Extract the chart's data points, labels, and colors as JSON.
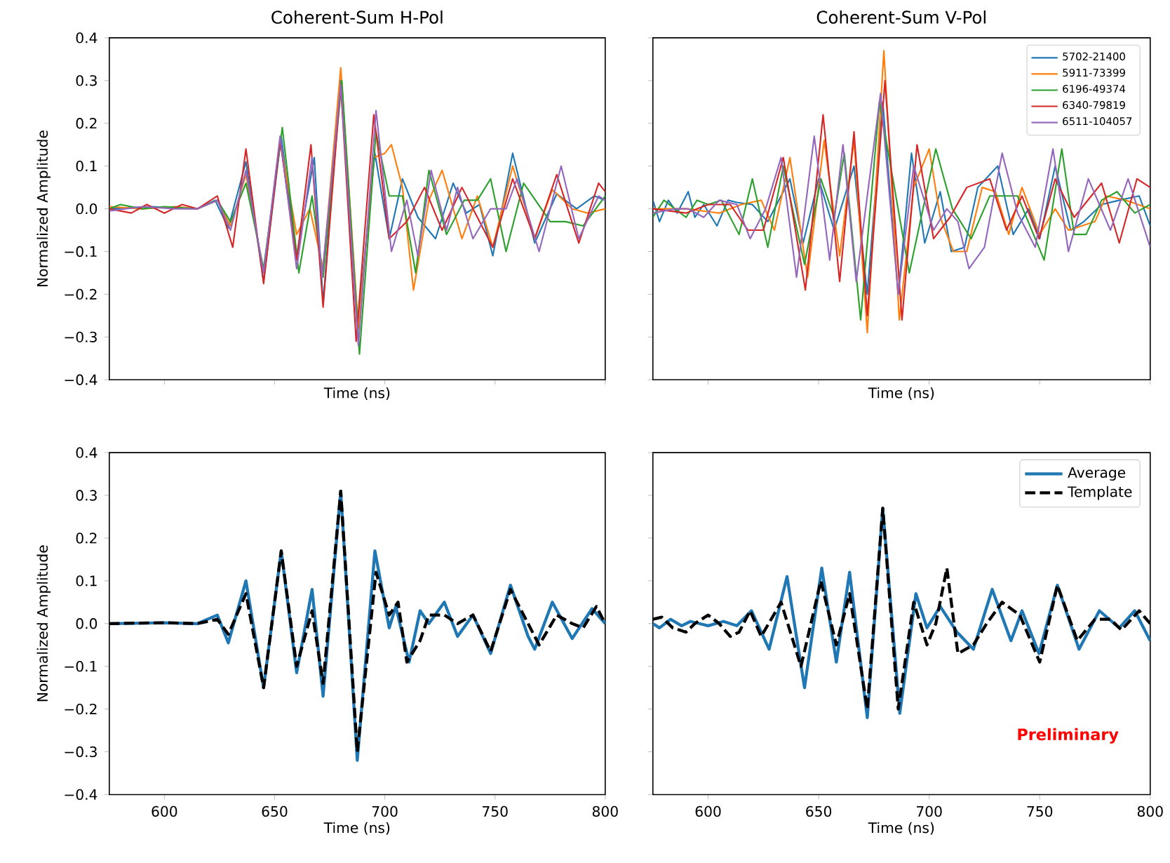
{
  "chart_data": [
    {
      "type": "line",
      "title": "Coherent-Sum H-Pol",
      "xlabel": "Time (ns)",
      "ylabel": "Normalized Amplitude",
      "xlim": [
        575,
        800
      ],
      "ylim": [
        -0.4,
        0.4
      ],
      "xticks": [
        600,
        650,
        700,
        750,
        800
      ],
      "yticks": [
        {
          "value": -0.4,
          "label": "−0.4"
        },
        {
          "value": -0.3,
          "label": "−0.3"
        },
        {
          "value": -0.2,
          "label": "−0.2"
        },
        {
          "value": -0.1,
          "label": "−0.1"
        },
        {
          "value": 0,
          "label": "0.0"
        },
        {
          "value": 0.1,
          "label": "0.1"
        },
        {
          "value": 0.2,
          "label": "0.2"
        },
        {
          "value": 0.3,
          "label": "0.3"
        },
        {
          "value": 0.4,
          "label": "0.4"
        }
      ],
      "tick_labels": "y",
      "grid": false,
      "legend": false,
      "series": [
        {
          "color": "#1f77b4",
          "x": [
            575,
            594,
            615,
            623,
            629,
            637,
            645,
            653,
            660,
            668,
            672,
            680,
            687.5,
            695.5,
            702,
            708,
            715,
            723,
            731,
            737,
            743,
            749,
            758,
            768,
            778,
            787,
            795,
            800
          ],
          "values": [
            0,
            0.005,
            0,
            0.02,
            -0.045,
            0.11,
            -0.17,
            0.17,
            -0.11,
            0.12,
            -0.22,
            0.3,
            -0.28,
            0.13,
            -0.07,
            0.07,
            -0.02,
            -0.07,
            0.06,
            -0.01,
            0.01,
            -0.11,
            0.13,
            -0.08,
            0.035,
            0,
            0.03,
            0.02
          ]
        },
        {
          "color": "#ff7f0e",
          "x": [
            575,
            590,
            605,
            615,
            624,
            630,
            637,
            645,
            652.5,
            660,
            666,
            672,
            680,
            688,
            695,
            700,
            703,
            708,
            713,
            720,
            726,
            735,
            742,
            749,
            758,
            768,
            776,
            785,
            792,
            800
          ],
          "values": [
            0.005,
            0,
            0.005,
            0,
            0.02,
            -0.04,
            0.08,
            -0.15,
            0.16,
            -0.06,
            0,
            -0.14,
            0.33,
            -0.28,
            0.12,
            0.13,
            0.15,
            0.05,
            -0.19,
            0.02,
            0.09,
            -0.07,
            0.03,
            -0.09,
            0.1,
            -0.07,
            0.045,
            0,
            -0.01,
            0
          ]
        },
        {
          "color": "#2ca02c",
          "x": [
            575,
            580,
            590,
            600,
            615,
            624,
            630,
            637,
            645,
            653.5,
            661,
            667,
            672,
            680.5,
            688.5,
            696,
            702,
            708,
            714,
            720,
            728,
            736,
            742,
            748,
            755,
            763,
            775,
            782,
            790,
            800
          ],
          "values": [
            0,
            0.01,
            0,
            0.005,
            0,
            0.02,
            -0.03,
            0.06,
            -0.14,
            0.19,
            -0.15,
            0.03,
            -0.16,
            0.3,
            -0.34,
            0.18,
            0.03,
            0.03,
            -0.15,
            0.09,
            -0.06,
            0.02,
            0.02,
            0.07,
            -0.1,
            0.06,
            -0.03,
            -0.03,
            -0.04,
            0.03
          ]
        },
        {
          "color": "#d62728",
          "x": [
            575,
            585,
            592,
            600,
            608,
            615,
            624,
            631,
            637,
            645,
            652.5,
            660,
            666.5,
            672,
            680,
            687,
            695,
            702,
            710,
            718,
            726,
            735,
            742,
            749,
            758,
            768,
            778,
            788,
            797,
            800
          ],
          "values": [
            0,
            -0.01,
            0.01,
            -0.01,
            0.01,
            0,
            0.03,
            -0.09,
            0.14,
            -0.175,
            0.16,
            -0.12,
            0.15,
            -0.23,
            0.29,
            -0.31,
            0.22,
            -0.07,
            -0.03,
            0.05,
            -0.05,
            0.05,
            -0.02,
            -0.09,
            0.07,
            -0.07,
            0.08,
            -0.08,
            0.06,
            0.04
          ]
        },
        {
          "color": "#9467bd",
          "x": [
            575,
            590,
            605,
            615,
            624,
            630,
            637,
            645,
            652.5,
            660,
            667,
            671.5,
            680,
            688,
            696,
            703,
            710,
            715,
            721,
            728,
            733,
            740,
            748,
            755,
            760,
            770,
            780,
            788,
            797,
            800
          ],
          "values": [
            -0.005,
            0.005,
            0,
            0,
            0.02,
            -0.05,
            0.09,
            -0.15,
            0.17,
            -0.14,
            0.12,
            -0.16,
            0.29,
            -0.32,
            0.23,
            -0.1,
            0.02,
            -0.11,
            0.09,
            -0.05,
            0.05,
            -0.07,
            0,
            0,
            0.07,
            -0.1,
            0.1,
            -0.07,
            0.03,
            0.02
          ]
        }
      ]
    },
    {
      "type": "line",
      "title": "Coherent-Sum V-Pol",
      "xlabel": "Time (ns)",
      "xlim": [
        575,
        800
      ],
      "ylim": [
        -0.4,
        0.4
      ],
      "xticks": [
        600,
        650,
        700,
        750,
        800
      ],
      "yticks": [
        -0.4,
        -0.3,
        -0.2,
        -0.1,
        0,
        0.1,
        0.2,
        0.3,
        0.4
      ],
      "tick_labels": false,
      "grid": false,
      "legend": "top right",
      "series": [
        {
          "name": "5702-21400",
          "color": "#1f77b4",
          "x": [
            575,
            578,
            582,
            586,
            591,
            594,
            598,
            604,
            609,
            613,
            620,
            627,
            637,
            643,
            650,
            657,
            666,
            672,
            679,
            686,
            692,
            698,
            705,
            710,
            716,
            722,
            731,
            738,
            745,
            750,
            757,
            764,
            770,
            778,
            786,
            795,
            800
          ],
          "values": [
            0.02,
            -0.03,
            0.02,
            -0.01,
            0.04,
            -0.02,
            0.01,
            -0.04,
            0.02,
            0.015,
            0.01,
            -0.03,
            0.07,
            -0.08,
            0.07,
            -0.05,
            0.1,
            -0.2,
            0.25,
            -0.2,
            0.13,
            -0.08,
            0.04,
            -0.1,
            -0.09,
            0.05,
            0.1,
            -0.06,
            0,
            -0.07,
            0.1,
            -0.05,
            -0.03,
            0.01,
            0.02,
            0.03,
            -0.04
          ]
        },
        {
          "name": "5911-73399",
          "color": "#ff7f0e",
          "x": [
            575,
            590,
            605,
            615,
            624,
            630,
            637,
            645,
            652.5,
            659.5,
            666,
            672,
            679.5,
            686.5,
            693,
            700,
            705,
            711,
            717,
            724,
            730,
            736,
            742,
            750,
            757,
            763,
            775,
            780,
            789,
            800
          ],
          "values": [
            0,
            0,
            -0.01,
            0.01,
            0.02,
            -0.05,
            0.12,
            -0.16,
            0.16,
            -0.11,
            0.16,
            -0.29,
            0.37,
            -0.26,
            0.05,
            0.14,
            -0.02,
            -0.1,
            -0.1,
            0.05,
            0.04,
            -0.06,
            0.05,
            -0.06,
            0,
            -0.05,
            -0.03,
            0.03,
            0.02,
            0
          ]
        },
        {
          "name": "6196-49374",
          "color": "#2ca02c",
          "x": [
            575,
            580,
            585,
            590,
            595,
            600,
            606,
            614,
            620,
            627,
            634,
            643.6,
            651,
            657,
            661.6,
            669,
            677.5,
            691,
            703,
            710.5,
            719,
            727.4,
            740,
            752,
            760,
            765.6,
            771,
            778,
            785,
            793,
            800
          ],
          "values": [
            -0.02,
            0.02,
            0,
            -0.02,
            0.02,
            0.01,
            0.02,
            -0.06,
            0.07,
            -0.09,
            0.1,
            -0.13,
            0.07,
            -0.02,
            0.13,
            -0.26,
            0.25,
            -0.15,
            0.14,
            0,
            -0.07,
            0.03,
            0.03,
            -0.12,
            0.14,
            -0.06,
            -0.06,
            0.02,
            0.04,
            -0.01,
            0.01
          ]
        },
        {
          "name": "6340-79819",
          "color": "#d62728",
          "x": [
            575,
            590,
            600,
            610,
            618,
            625,
            634,
            644,
            652,
            659.5,
            666,
            672,
            680,
            687.7,
            694.5,
            702,
            709.4,
            717,
            727.4,
            735,
            742,
            749.7,
            757,
            765.6,
            778,
            786,
            794,
            800
          ],
          "values": [
            0,
            -0.01,
            0.01,
            0.01,
            -0.05,
            -0.05,
            0.12,
            -0.19,
            0.22,
            -0.17,
            0.18,
            -0.25,
            0.3,
            -0.26,
            0.15,
            -0.07,
            -0.02,
            0.05,
            0.07,
            -0.05,
            0.03,
            -0.07,
            0.07,
            -0.02,
            0.06,
            -0.08,
            0.07,
            0.05
          ]
        },
        {
          "name": "6511-104057",
          "color": "#9467bd",
          "x": [
            575,
            585,
            591,
            598,
            605,
            613,
            619,
            626,
            633,
            640,
            648,
            655,
            661,
            667,
            678,
            686,
            693,
            702,
            708,
            713,
            718,
            725,
            733,
            740,
            748,
            756,
            763,
            772,
            782,
            790,
            800
          ],
          "values": [
            -0.01,
            0,
            0,
            -0.02,
            0.02,
            0.01,
            -0.07,
            0,
            0.12,
            -0.16,
            0.17,
            -0.12,
            0.15,
            -0.17,
            0.27,
            -0.2,
            0.1,
            -0.05,
            0,
            -0.03,
            -0.14,
            -0.09,
            0.13,
            -0.01,
            -0.09,
            0.14,
            -0.1,
            0.07,
            -0.05,
            0.07,
            -0.09
          ]
        }
      ]
    },
    {
      "type": "line",
      "xlabel": "Time (ns)",
      "ylabel": "Normalized Amplitude",
      "xlim": [
        575,
        800
      ],
      "ylim": [
        -0.4,
        0.4
      ],
      "xticks": [
        600,
        650,
        700,
        750,
        800
      ],
      "yticks": [
        {
          "value": -0.4,
          "label": "−0.4"
        },
        {
          "value": -0.3,
          "label": "−0.3"
        },
        {
          "value": -0.2,
          "label": "−0.2"
        },
        {
          "value": -0.1,
          "label": "−0.1"
        },
        {
          "value": 0,
          "label": "0.0"
        },
        {
          "value": 0.1,
          "label": "0.1"
        },
        {
          "value": 0.2,
          "label": "0.2"
        },
        {
          "value": 0.3,
          "label": "0.3"
        },
        {
          "value": 0.4,
          "label": "0.4"
        }
      ],
      "grid": false,
      "legend": false,
      "series": [
        {
          "color": "#1f77b4",
          "line_style": "solid",
          "x": [
            575,
            600,
            615,
            624,
            629,
            637,
            645,
            653,
            660,
            667,
            672,
            680,
            687.5,
            695.5,
            702,
            705,
            711,
            716,
            720,
            727,
            733,
            740,
            748,
            757,
            765,
            768,
            776,
            785,
            794,
            800
          ],
          "values": [
            0,
            0.002,
            0,
            0.02,
            -0.045,
            0.1,
            -0.15,
            0.17,
            -0.115,
            0.08,
            -0.17,
            0.31,
            -0.32,
            0.17,
            -0.01,
            0.04,
            -0.09,
            0.03,
            0,
            0.05,
            -0.03,
            0.02,
            -0.07,
            0.09,
            -0.03,
            -0.06,
            0.05,
            -0.035,
            0.035,
            0
          ]
        },
        {
          "color": "#000000",
          "line_style": "dashed",
          "x": [
            575,
            600,
            615,
            624,
            629,
            637,
            645,
            653,
            660,
            667,
            672,
            680,
            687.5,
            696,
            702,
            706,
            710,
            716,
            720,
            727,
            733,
            740,
            748,
            757,
            765,
            770,
            778,
            785,
            790,
            796,
            800
          ],
          "values": [
            0,
            0.002,
            0,
            0.01,
            -0.025,
            0.07,
            -0.15,
            0.17,
            -0.1,
            0.03,
            -0.14,
            0.31,
            -0.3,
            0.12,
            0.02,
            0.05,
            -0.09,
            -0.04,
            0.02,
            0.02,
            0,
            0.02,
            -0.065,
            0.08,
            0,
            -0.05,
            0.02,
            0,
            -0.01,
            0.04,
            0
          ]
        }
      ]
    },
    {
      "type": "line",
      "xlabel": "Time (ns)",
      "xlim": [
        575,
        800
      ],
      "ylim": [
        -0.4,
        0.4
      ],
      "xticks": [
        600,
        650,
        700,
        750,
        800
      ],
      "yticks": [
        -0.4,
        -0.3,
        -0.2,
        -0.1,
        0,
        0.1,
        0.2,
        0.3,
        0.4
      ],
      "tick_labels": "x",
      "grid": false,
      "legend": "top right",
      "annotations": [
        "Preliminary"
      ],
      "series": [
        {
          "name": "Average",
          "color": "#1f77b4",
          "line_style": "solid",
          "x": [
            575,
            578,
            583,
            588,
            592,
            596,
            600,
            607,
            613,
            619.6,
            627.6,
            635.7,
            643.6,
            651.4,
            658,
            664,
            672,
            679,
            686.7,
            694,
            699,
            705,
            712.6,
            720,
            728.5,
            737,
            742,
            749.7,
            758,
            767.8,
            777,
            786,
            793,
            800
          ],
          "values": [
            0,
            -0.01,
            0.01,
            -0.005,
            0.005,
            0,
            -0.005,
            0.005,
            -0.005,
            0.03,
            -0.06,
            0.11,
            -0.15,
            0.13,
            -0.09,
            0.12,
            -0.22,
            0.27,
            -0.21,
            0.07,
            -0.01,
            0.04,
            -0.02,
            -0.06,
            0.08,
            -0.04,
            0.03,
            -0.07,
            0.09,
            -0.06,
            0.03,
            -0.01,
            0.03,
            -0.04
          ]
        },
        {
          "name": "Template",
          "color": "#000000",
          "line_style": "dashed",
          "x": [
            575,
            579,
            584,
            590,
            594,
            600,
            605,
            610,
            614,
            619,
            624,
            633,
            642,
            651,
            658,
            664,
            672,
            679,
            686,
            693,
            699,
            703,
            708,
            713,
            720,
            726,
            733,
            741,
            750,
            758,
            767,
            775,
            782,
            787,
            795,
            800
          ],
          "values": [
            0.01,
            0.015,
            -0.01,
            -0.02,
            0,
            0.02,
            0,
            -0.03,
            -0.02,
            0.03,
            -0.03,
            0.05,
            -0.1,
            0.1,
            -0.05,
            0.07,
            -0.2,
            0.27,
            -0.2,
            0.05,
            -0.05,
            0,
            0.13,
            -0.07,
            -0.05,
            0,
            0.05,
            0.02,
            -0.09,
            0.09,
            -0.04,
            0.01,
            0.01,
            -0.015,
            0.03,
            0
          ]
        }
      ]
    }
  ]
}
